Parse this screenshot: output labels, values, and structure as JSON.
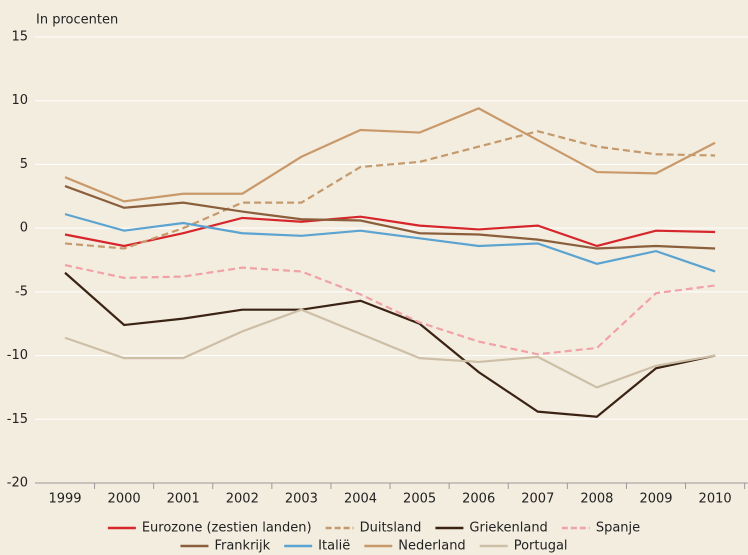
{
  "chart_data": {
    "type": "line",
    "y_label": "In procenten",
    "x": [
      "1999",
      "2000",
      "2001",
      "2002",
      "2003",
      "2004",
      "2005",
      "2006",
      "2007",
      "2008",
      "2009",
      "2010"
    ],
    "ylim": [
      -20,
      15
    ],
    "yticks": [
      -20,
      -15,
      -10,
      -5,
      0,
      5,
      10,
      15
    ],
    "grid": true,
    "series": [
      {
        "name": "Eurozone (zestien landen)",
        "color": "#d7262b",
        "dashed": false,
        "values": [
          -0.5,
          -1.4,
          -0.4,
          0.8,
          0.5,
          0.9,
          0.2,
          -0.1,
          0.2,
          -1.4,
          -0.2,
          -0.3
        ]
      },
      {
        "name": "Duitsland",
        "color": "#c49a6c",
        "dashed": true,
        "values": [
          -1.2,
          -1.6,
          0,
          2.0,
          2.0,
          4.8,
          5.2,
          6.4,
          7.6,
          6.4,
          5.8,
          5.7
        ]
      },
      {
        "name": "Griekenland",
        "color": "#3b2314",
        "dashed": false,
        "values": [
          -3.5,
          -7.6,
          -7.1,
          -6.4,
          -6.4,
          -5.7,
          -7.5,
          -11.3,
          -14.4,
          -14.8,
          -11.0,
          -10.0
        ]
      },
      {
        "name": "Spanje",
        "color": "#f0a2a7",
        "dashed": true,
        "values": [
          -2.9,
          -3.9,
          -3.8,
          -3.1,
          -3.4,
          -5.2,
          -7.4,
          -8.9,
          -9.9,
          -9.4,
          -5.1,
          -4.5
        ]
      },
      {
        "name": "Frankrijk",
        "color": "#8b5e3c",
        "dashed": false,
        "values": [
          3.3,
          1.6,
          2.0,
          1.3,
          0.7,
          0.6,
          -0.4,
          -0.5,
          -0.9,
          -1.6,
          -1.4,
          -1.6
        ]
      },
      {
        "name": "Italië",
        "color": "#5ba3d0",
        "dashed": false,
        "values": [
          1.1,
          -0.2,
          0.4,
          -0.4,
          -0.6,
          -0.2,
          -0.8,
          -1.4,
          -1.2,
          -2.8,
          -1.8,
          -3.4
        ]
      },
      {
        "name": "Nederland",
        "color": "#c9996a",
        "dashed": false,
        "values": [
          4.0,
          2.1,
          2.7,
          2.7,
          5.6,
          7.7,
          7.5,
          9.4,
          6.9,
          4.4,
          4.3,
          6.7
        ]
      },
      {
        "name": "Portugal",
        "color": "#cdbfa6",
        "dashed": false,
        "values": [
          -8.6,
          -10.2,
          -10.2,
          -8.1,
          -6.4,
          -8.3,
          -10.2,
          -10.5,
          -10.1,
          -12.5,
          -10.8,
          -10.0
        ]
      }
    ]
  }
}
